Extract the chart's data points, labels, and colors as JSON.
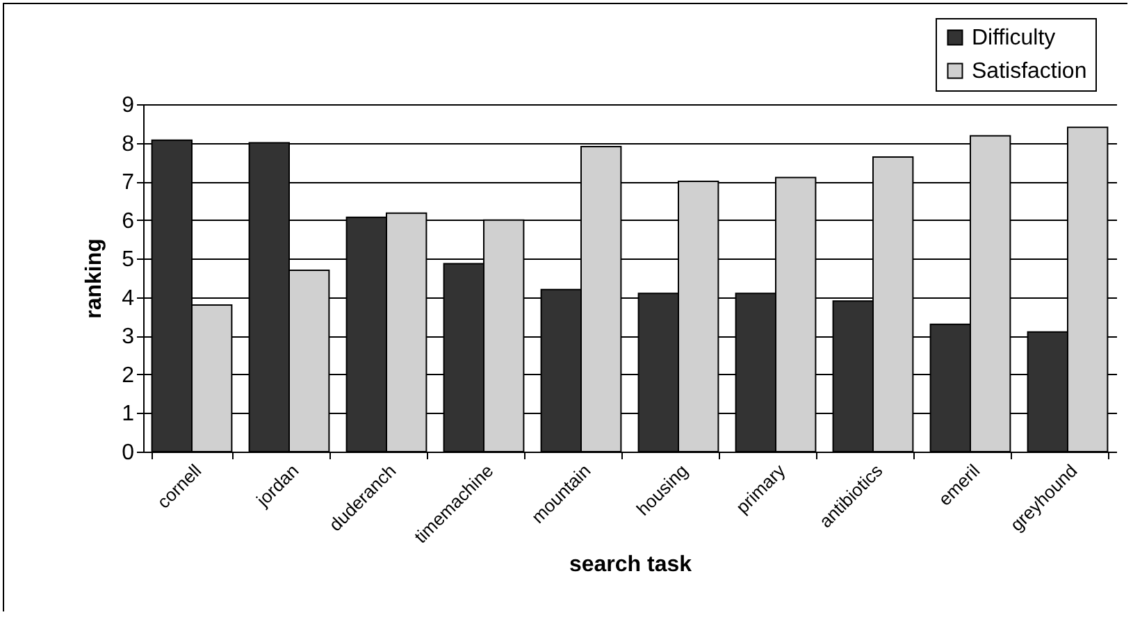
{
  "chart_data": {
    "type": "bar",
    "xlabel": "search task",
    "ylabel": "ranking",
    "categories": [
      "cornell",
      "jordan",
      "duderanch",
      "timemachine",
      "mountain",
      "housing",
      "primary",
      "antibiotics",
      "emeril",
      "greyhound"
    ],
    "series": [
      {
        "name": "Difficulty",
        "color": "#333333",
        "values": [
          8.07,
          8.0,
          6.07,
          4.87,
          4.2,
          4.1,
          4.1,
          3.9,
          3.3,
          3.1
        ]
      },
      {
        "name": "Satisfaction",
        "color": "#d0d0d0",
        "values": [
          3.8,
          4.7,
          6.18,
          6.0,
          7.9,
          7.0,
          7.1,
          7.63,
          8.18,
          8.4
        ]
      }
    ],
    "ylim": [
      0,
      9
    ],
    "yticks": [
      0,
      1,
      2,
      3,
      4,
      5,
      6,
      7,
      8,
      9
    ],
    "grid": "y",
    "legend": "top right"
  }
}
